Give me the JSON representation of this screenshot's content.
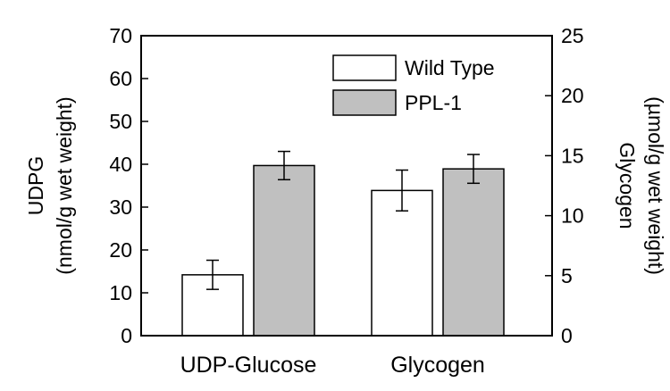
{
  "chart_data": {
    "type": "bar",
    "categories": [
      "UDP-Glucose",
      "Glycogen"
    ],
    "series": [
      {
        "name": "Wild Type",
        "color": "#ffffff",
        "values": [
          14.2,
          12.1
        ],
        "errors": [
          3.4,
          1.7
        ],
        "axis": [
          "left",
          "right"
        ]
      },
      {
        "name": "PPL-1",
        "color": "#c0c0c0",
        "values": [
          39.7,
          13.9
        ],
        "errors": [
          3.3,
          1.2
        ],
        "axis": [
          "left",
          "right"
        ]
      }
    ],
    "y_left": {
      "label_line1": "UDPG",
      "label_line2": "(nmol/g wet weight)",
      "ylim": [
        0,
        70
      ],
      "ticks": [
        "0",
        "10",
        "20",
        "30",
        "40",
        "50",
        "60",
        "70"
      ]
    },
    "y_right": {
      "label_line1": "Glycogen",
      "label_line2": "(µmol/g wet weight)",
      "ylim": [
        0,
        25
      ],
      "ticks": [
        "0",
        "5",
        "10",
        "15",
        "20",
        "25"
      ]
    },
    "legend_position": "top-right",
    "grid": false
  }
}
